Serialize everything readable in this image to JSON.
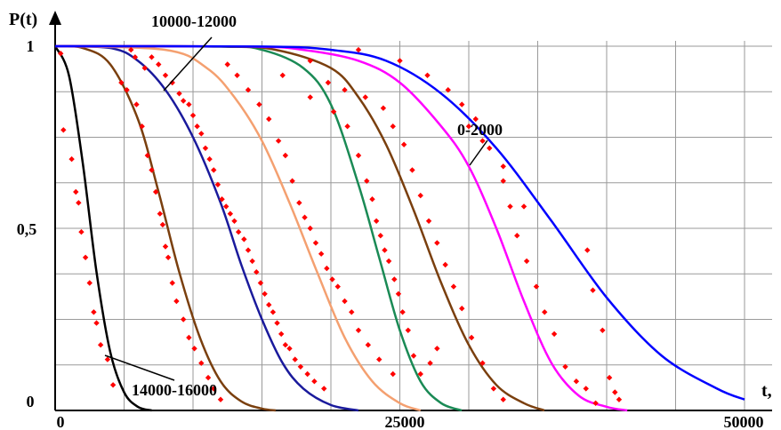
{
  "chart_data": {
    "type": "line",
    "title": "",
    "xlabel": "t,",
    "ylabel": "P(t)",
    "xlim": [
      0,
      52000
    ],
    "ylim": [
      0,
      1
    ],
    "x_ticks": [
      "0",
      "25000",
      "50000"
    ],
    "y_ticks": [
      "0",
      "0,5",
      "1"
    ],
    "grid": true,
    "colors": {
      "black": "#000000",
      "brown": "#7a3f0e",
      "navy": "#1a1a9c",
      "orange": "#f4a070",
      "green": "#1a8a55",
      "magenta": "#ff00ff",
      "blue": "#0000ff",
      "points": "#ff0000"
    },
    "series": [
      {
        "color": "black",
        "values": [
          [
            0,
            1
          ],
          [
            1000,
            0.92
          ],
          [
            2000,
            0.68
          ],
          [
            3000,
            0.38
          ],
          [
            4000,
            0.16
          ],
          [
            5000,
            0.05
          ],
          [
            6000,
            0.01
          ],
          [
            7000,
            0.0
          ]
        ]
      },
      {
        "color": "brown",
        "values": [
          [
            0,
            1
          ],
          [
            2000,
            0.995
          ],
          [
            4000,
            0.95
          ],
          [
            6000,
            0.8
          ],
          [
            7500,
            0.6
          ],
          [
            9000,
            0.38
          ],
          [
            10500,
            0.2
          ],
          [
            12000,
            0.08
          ],
          [
            13500,
            0.025
          ],
          [
            15000,
            0.005
          ],
          [
            16000,
            0.0
          ]
        ]
      },
      {
        "color": "navy",
        "values": [
          [
            0,
            1
          ],
          [
            4000,
            0.995
          ],
          [
            6000,
            0.96
          ],
          [
            8000,
            0.88
          ],
          [
            10000,
            0.75
          ],
          [
            12000,
            0.57
          ],
          [
            13500,
            0.4
          ],
          [
            15000,
            0.25
          ],
          [
            16500,
            0.13
          ],
          [
            18000,
            0.06
          ],
          [
            20000,
            0.015
          ],
          [
            22000,
            0.0
          ]
        ]
      },
      {
        "color": "orange",
        "values": [
          [
            0,
            1
          ],
          [
            8000,
            0.99
          ],
          [
            11000,
            0.94
          ],
          [
            13000,
            0.86
          ],
          [
            15000,
            0.74
          ],
          [
            17000,
            0.57
          ],
          [
            19000,
            0.38
          ],
          [
            21000,
            0.2
          ],
          [
            23000,
            0.08
          ],
          [
            25000,
            0.02
          ],
          [
            26500,
            0.0
          ]
        ]
      },
      {
        "color": "green",
        "values": [
          [
            0,
            1
          ],
          [
            12000,
            0.999
          ],
          [
            15000,
            0.99
          ],
          [
            18000,
            0.94
          ],
          [
            20000,
            0.84
          ],
          [
            22000,
            0.62
          ],
          [
            23500,
            0.42
          ],
          [
            25000,
            0.22
          ],
          [
            26500,
            0.08
          ],
          [
            28000,
            0.02
          ],
          [
            29500,
            0.0
          ]
        ]
      },
      {
        "color": "brown",
        "values": [
          [
            0,
            1
          ],
          [
            12000,
            0.999
          ],
          [
            16000,
            0.99
          ],
          [
            20000,
            0.94
          ],
          [
            22000,
            0.86
          ],
          [
            24000,
            0.73
          ],
          [
            26000,
            0.55
          ],
          [
            28000,
            0.35
          ],
          [
            30000,
            0.18
          ],
          [
            32000,
            0.07
          ],
          [
            34000,
            0.02
          ],
          [
            35500,
            0.0
          ]
        ]
      },
      {
        "color": "magenta",
        "values": [
          [
            0,
            1
          ],
          [
            14000,
            0.999
          ],
          [
            18000,
            0.99
          ],
          [
            22000,
            0.96
          ],
          [
            25000,
            0.9
          ],
          [
            28000,
            0.78
          ],
          [
            30000,
            0.67
          ],
          [
            32000,
            0.5
          ],
          [
            34000,
            0.3
          ],
          [
            36000,
            0.13
          ],
          [
            38000,
            0.04
          ],
          [
            40000,
            0.01
          ],
          [
            41500,
            0.0
          ]
        ]
      },
      {
        "color": "blue",
        "values": [
          [
            0,
            1
          ],
          [
            15000,
            0.999
          ],
          [
            20000,
            0.99
          ],
          [
            24000,
            0.96
          ],
          [
            28000,
            0.87
          ],
          [
            32000,
            0.72
          ],
          [
            36000,
            0.52
          ],
          [
            40000,
            0.31
          ],
          [
            44000,
            0.15
          ],
          [
            48000,
            0.06
          ],
          [
            50000,
            0.03
          ]
        ]
      }
    ],
    "scatter": [
      [
        400,
        0.98
      ],
      [
        600,
        0.77
      ],
      [
        1200,
        0.69
      ],
      [
        1500,
        0.6
      ],
      [
        1700,
        0.57
      ],
      [
        1900,
        0.49
      ],
      [
        2200,
        0.42
      ],
      [
        2500,
        0.35
      ],
      [
        2800,
        0.27
      ],
      [
        3000,
        0.24
      ],
      [
        3300,
        0.18
      ],
      [
        3800,
        0.14
      ],
      [
        4200,
        0.07
      ],
      [
        4800,
        0.9
      ],
      [
        5200,
        0.88
      ],
      [
        5900,
        0.84
      ],
      [
        6300,
        0.78
      ],
      [
        6700,
        0.7
      ],
      [
        7000,
        0.66
      ],
      [
        7300,
        0.6
      ],
      [
        7600,
        0.54
      ],
      [
        7800,
        0.51
      ],
      [
        8000,
        0.45
      ],
      [
        8200,
        0.42
      ],
      [
        8500,
        0.35
      ],
      [
        8800,
        0.3
      ],
      [
        9300,
        0.25
      ],
      [
        9700,
        0.2
      ],
      [
        10100,
        0.17
      ],
      [
        10600,
        0.13
      ],
      [
        11100,
        0.09
      ],
      [
        11500,
        0.06
      ],
      [
        12000,
        0.03
      ],
      [
        5500,
        0.99
      ],
      [
        5800,
        0.97
      ],
      [
        6500,
        0.94
      ],
      [
        7000,
        0.97
      ],
      [
        7500,
        0.95
      ],
      [
        8000,
        0.92
      ],
      [
        8500,
        0.9
      ],
      [
        9000,
        0.87
      ],
      [
        9300,
        0.85
      ],
      [
        9700,
        0.84
      ],
      [
        10000,
        0.81
      ],
      [
        10300,
        0.78
      ],
      [
        10600,
        0.76
      ],
      [
        10900,
        0.72
      ],
      [
        11200,
        0.69
      ],
      [
        11500,
        0.66
      ],
      [
        11800,
        0.62
      ],
      [
        12100,
        0.58
      ],
      [
        12400,
        0.56
      ],
      [
        12700,
        0.54
      ],
      [
        13000,
        0.52
      ],
      [
        13300,
        0.49
      ],
      [
        13700,
        0.47
      ],
      [
        14000,
        0.44
      ],
      [
        14300,
        0.41
      ],
      [
        14600,
        0.38
      ],
      [
        14900,
        0.35
      ],
      [
        15200,
        0.32
      ],
      [
        15500,
        0.29
      ],
      [
        15800,
        0.27
      ],
      [
        16100,
        0.24
      ],
      [
        16400,
        0.21
      ],
      [
        16700,
        0.18
      ],
      [
        17000,
        0.17
      ],
      [
        17400,
        0.14
      ],
      [
        17800,
        0.12
      ],
      [
        18300,
        0.1
      ],
      [
        18800,
        0.08
      ],
      [
        19500,
        0.06
      ],
      [
        12500,
        0.95
      ],
      [
        13200,
        0.92
      ],
      [
        14000,
        0.88
      ],
      [
        14800,
        0.84
      ],
      [
        15500,
        0.8
      ],
      [
        16200,
        0.74
      ],
      [
        16700,
        0.7
      ],
      [
        17200,
        0.63
      ],
      [
        17700,
        0.57
      ],
      [
        18100,
        0.53
      ],
      [
        18500,
        0.5
      ],
      [
        18900,
        0.46
      ],
      [
        19300,
        0.43
      ],
      [
        19700,
        0.39
      ],
      [
        20100,
        0.36
      ],
      [
        20500,
        0.34
      ],
      [
        21000,
        0.3
      ],
      [
        21500,
        0.27
      ],
      [
        22000,
        0.22
      ],
      [
        22700,
        0.18
      ],
      [
        23500,
        0.14
      ],
      [
        24500,
        0.1
      ],
      [
        16500,
        0.92
      ],
      [
        18500,
        0.86
      ],
      [
        20200,
        0.82
      ],
      [
        21200,
        0.78
      ],
      [
        22000,
        0.7
      ],
      [
        22600,
        0.63
      ],
      [
        23000,
        0.58
      ],
      [
        23300,
        0.52
      ],
      [
        23600,
        0.48
      ],
      [
        23900,
        0.44
      ],
      [
        24200,
        0.41
      ],
      [
        24600,
        0.36
      ],
      [
        24900,
        0.32
      ],
      [
        25200,
        0.27
      ],
      [
        25600,
        0.22
      ],
      [
        26000,
        0.15
      ],
      [
        26500,
        0.1
      ],
      [
        27200,
        0.13
      ],
      [
        27700,
        0.17
      ],
      [
        18500,
        0.96
      ],
      [
        19800,
        0.9
      ],
      [
        21000,
        0.88
      ],
      [
        22500,
        0.86
      ],
      [
        23800,
        0.83
      ],
      [
        24500,
        0.78
      ],
      [
        25300,
        0.73
      ],
      [
        25900,
        0.66
      ],
      [
        26500,
        0.59
      ],
      [
        27100,
        0.52
      ],
      [
        27700,
        0.46
      ],
      [
        28300,
        0.4
      ],
      [
        28900,
        0.34
      ],
      [
        29500,
        0.28
      ],
      [
        30200,
        0.2
      ],
      [
        31000,
        0.13
      ],
      [
        31800,
        0.06
      ],
      [
        32500,
        0.03
      ],
      [
        22000,
        0.99
      ],
      [
        25000,
        0.96
      ],
      [
        27000,
        0.92
      ],
      [
        28500,
        0.88
      ],
      [
        29500,
        0.84
      ],
      [
        30500,
        0.8
      ],
      [
        31500,
        0.72
      ],
      [
        32500,
        0.63
      ],
      [
        33000,
        0.56
      ],
      [
        33500,
        0.48
      ],
      [
        34200,
        0.41
      ],
      [
        34900,
        0.34
      ],
      [
        35500,
        0.27
      ],
      [
        36200,
        0.21
      ],
      [
        37000,
        0.12
      ],
      [
        37800,
        0.08
      ],
      [
        38500,
        0.06
      ],
      [
        39200,
        0.02
      ],
      [
        30000,
        0.78
      ],
      [
        31000,
        0.74
      ],
      [
        32500,
        0.67
      ],
      [
        34000,
        0.56
      ],
      [
        38600,
        0.44
      ],
      [
        39000,
        0.33
      ],
      [
        39700,
        0.22
      ],
      [
        40200,
        0.09
      ],
      [
        40600,
        0.05
      ],
      [
        40900,
        0.03
      ]
    ],
    "annotations": [
      "10000-12000",
      "0-2000",
      "14000-16000"
    ]
  }
}
